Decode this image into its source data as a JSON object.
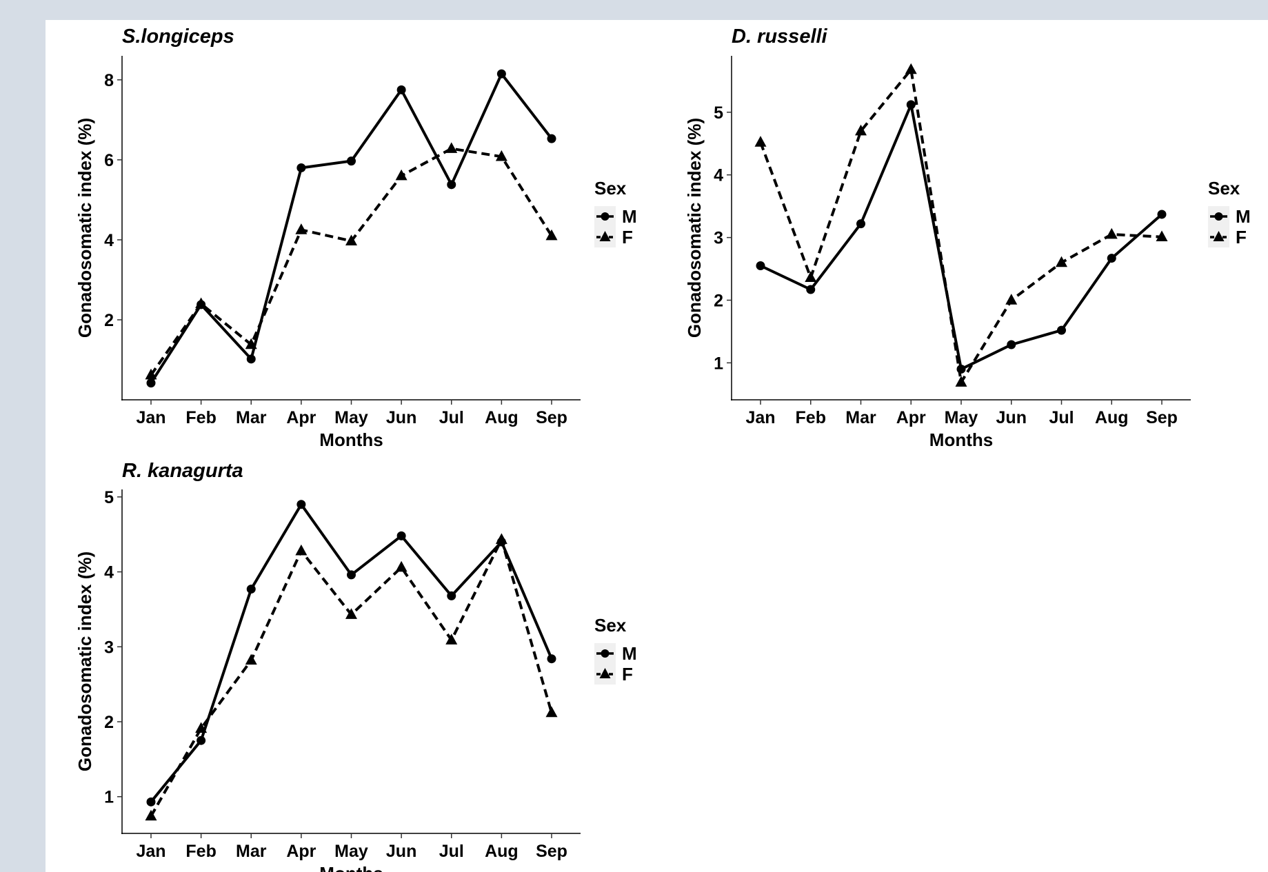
{
  "chart_data": [
    {
      "type": "line",
      "title": "S.longiceps",
      "xlabel": "Months",
      "ylabel": "Gonadosomatic index (%)",
      "categories": [
        "Jan",
        "Feb",
        "Mar",
        "Apr",
        "May",
        "Jun",
        "Jul",
        "Aug",
        "Sep"
      ],
      "yticks": [
        2,
        4,
        6,
        8
      ],
      "ylim": [
        0,
        8.6
      ],
      "series": [
        {
          "name": "M",
          "marker": "circle",
          "line_style": "solid",
          "values": [
            0.42,
            2.38,
            1.02,
            5.8,
            5.97,
            7.75,
            5.38,
            8.15,
            6.53
          ]
        },
        {
          "name": "F",
          "marker": "triangle",
          "line_style": "dashed",
          "values": [
            0.62,
            2.4,
            1.38,
            4.25,
            3.97,
            5.6,
            6.28,
            6.08,
            4.1
          ]
        }
      ],
      "legend": {
        "title": "Sex",
        "placement": "right"
      },
      "grid": false
    },
    {
      "type": "line",
      "title": "D. russelli",
      "xlabel": "Months",
      "ylabel": "Gonadosomatic index (%)",
      "categories": [
        "Jan",
        "Feb",
        "Mar",
        "Apr",
        "May",
        "Jun",
        "Jul",
        "Aug",
        "Sep"
      ],
      "yticks": [
        1,
        2,
        3,
        4,
        5
      ],
      "ylim": [
        0.41,
        5.9
      ],
      "series": [
        {
          "name": "M",
          "marker": "circle",
          "line_style": "solid",
          "values": [
            2.55,
            2.17,
            3.22,
            5.12,
            0.9,
            1.29,
            1.52,
            2.67,
            3.37
          ]
        },
        {
          "name": "F",
          "marker": "triangle",
          "line_style": "dashed",
          "values": [
            4.52,
            2.36,
            4.7,
            5.68,
            0.69,
            2.0,
            2.6,
            3.05,
            3.01
          ]
        }
      ],
      "legend": {
        "title": "Sex",
        "placement": "right"
      },
      "grid": false
    },
    {
      "type": "line",
      "title": "R. kanagurta",
      "xlabel": "Months",
      "ylabel": "Gonadosomatic index (%)",
      "categories": [
        "Jan",
        "Feb",
        "Mar",
        "Apr",
        "May",
        "Jun",
        "Jul",
        "Aug",
        "Sep"
      ],
      "yticks": [
        1,
        2,
        3,
        4,
        5
      ],
      "ylim": [
        0.51,
        5.1
      ],
      "series": [
        {
          "name": "M",
          "marker": "circle",
          "line_style": "solid",
          "values": [
            0.93,
            1.75,
            3.77,
            4.9,
            3.96,
            4.48,
            3.68,
            4.4,
            2.84
          ]
        },
        {
          "name": "F",
          "marker": "triangle",
          "line_style": "dashed",
          "values": [
            0.74,
            1.91,
            2.82,
            4.28,
            3.43,
            4.06,
            3.09,
            4.43,
            2.12
          ]
        }
      ],
      "legend": {
        "title": "Sex",
        "placement": "right"
      },
      "grid": false
    }
  ]
}
